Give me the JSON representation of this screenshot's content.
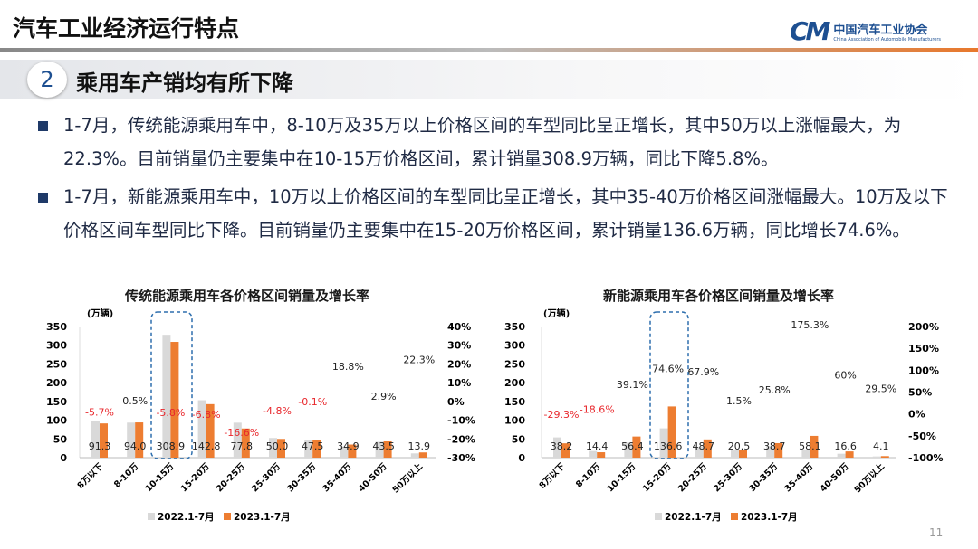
{
  "header": {
    "title": "汽车工业经济运行特点",
    "logo_cn": "中国汽车工业协会",
    "logo_en": "China Association of Automobile Manufacturers",
    "logo_mark": "CM"
  },
  "section": {
    "number": "2",
    "title": "乘用车产销均有所下降"
  },
  "bullets": [
    "1-7月，传统能源乘用车中，8-10万及35万以上价格区间的车型同比呈正增长，其中50万以上涨幅最大，为22.3%。目前销量仍主要集中在10-15万价格区间，累计销量308.9万辆，同比下降5.8%。",
    "1-7月，新能源乘用车中，10万以上价格区间的车型同比呈正增长，其中35-40万价格区间涨幅最大。10万及以下价格区间车型同比下降。目前销量仍主要集中在15-20万价格区间，累计销量136.6万辆，同比增长74.6%。"
  ],
  "page_number": "11",
  "colors": {
    "series_2022": "#d9d9d9",
    "series_2023": "#ed7d31",
    "negative": "#e8262b",
    "highlight_box": "#2e6fae"
  },
  "chart_data": [
    {
      "type": "bar",
      "title": "传统能源乘用车各价格区间销量及增长率",
      "ylabel": "(万辆)",
      "ylim": [
        0,
        350
      ],
      "yticks": [
        "0",
        "50",
        "100",
        "150",
        "200",
        "250",
        "300",
        "350"
      ],
      "y2lim": [
        -30,
        40
      ],
      "y2ticks": [
        "-30%",
        "-20%",
        "-10%",
        "0%",
        "10%",
        "20%",
        "30%",
        "40%"
      ],
      "categories": [
        "8万以下",
        "8-10万",
        "10-15万",
        "15-20万",
        "20-25万",
        "25-30万",
        "30-35万",
        "35-40万",
        "40-50万",
        "50万以上"
      ],
      "series": [
        {
          "name": "2022.1-7月",
          "values": [
            96.8,
            93.5,
            327.9,
            153.2,
            93.3,
            52.5,
            47.5,
            29.4,
            42.3,
            11.4
          ]
        },
        {
          "name": "2023.1-7月",
          "values": [
            91.3,
            94.0,
            308.9,
            142.8,
            77.8,
            50.0,
            47.5,
            34.9,
            43.5,
            13.9
          ],
          "labels": [
            "91.3",
            "94.0",
            "308.9",
            "142.8",
            "77.8",
            "50.0",
            "47.5",
            "34.9",
            "43.5",
            "13.9"
          ]
        }
      ],
      "growth": [
        -5.7,
        0.5,
        -5.8,
        -6.8,
        -16.6,
        -4.8,
        -0.1,
        18.8,
        2.9,
        22.3
      ],
      "growth_labels": [
        "-5.7%",
        "0.5%",
        "-5.8%",
        "-6.8%",
        "-16.6%",
        "-4.8%",
        "-0.1%",
        "18.8%",
        "2.9%",
        "22.3%"
      ],
      "highlight": "10-15万",
      "legend": "bottom"
    },
    {
      "type": "bar",
      "title": "新能源乘用车各价格区间销量及增长率",
      "ylabel": "(万辆)",
      "ylim": [
        0,
        350
      ],
      "yticks": [
        "0",
        "50",
        "100",
        "150",
        "200",
        "250",
        "300",
        "350"
      ],
      "y2lim": [
        -100,
        200
      ],
      "y2ticks": [
        "-100%",
        "-50%",
        "0%",
        "50%",
        "100%",
        "150%",
        "200%"
      ],
      "categories": [
        "8万以下",
        "8-10万",
        "10-15万",
        "15-20万",
        "20-25万",
        "25-30万",
        "30-35万",
        "35-40万",
        "40-50万",
        "50万以上"
      ],
      "series": [
        {
          "name": "2022.1-7月",
          "values": [
            54.0,
            17.7,
            40.5,
            78.2,
            29.0,
            20.2,
            30.8,
            21.1,
            10.4,
            3.2
          ]
        },
        {
          "name": "2023.1-7月",
          "values": [
            38.2,
            14.4,
            56.4,
            136.6,
            48.7,
            20.5,
            38.7,
            58.1,
            16.6,
            4.1
          ],
          "labels": [
            "38.2",
            "14.4",
            "56.4",
            "136.6",
            "48.7",
            "20.5",
            "38.7",
            "58.1",
            "16.6",
            "4.1"
          ]
        }
      ],
      "growth": [
        -29.3,
        -18.6,
        39.1,
        74.6,
        67.9,
        1.5,
        25.8,
        175.3,
        60,
        29.5
      ],
      "growth_labels": [
        "-29.3%",
        "-18.6%",
        "39.1%",
        "74.6%",
        "67.9%",
        "1.5%",
        "25.8%",
        "175.3%",
        "60%",
        "29.5%"
      ],
      "highlight": "15-20万",
      "legend": "bottom"
    }
  ]
}
